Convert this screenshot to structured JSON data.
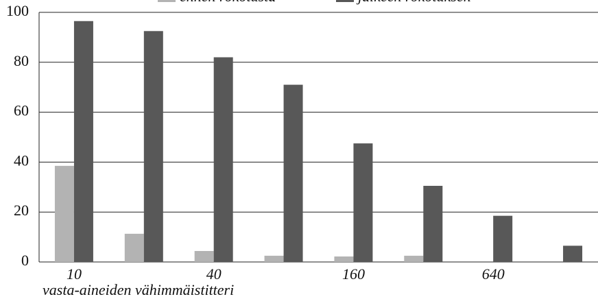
{
  "chart_data": {
    "type": "bar",
    "x_label": "vasta-aineiden vähimmäistitteri",
    "categories": [
      "10",
      null,
      "40",
      null,
      "160",
      null,
      "640",
      null
    ],
    "series": [
      {
        "name": "ennen rokotusta",
        "color": "#b3b3b3",
        "values": [
          38.5,
          11.3,
          4.4,
          2.5,
          2.2,
          2.5,
          0,
          0
        ]
      },
      {
        "name": "jälkeen rokotuksen",
        "color": "#585858",
        "values": [
          96.5,
          92.5,
          82,
          71,
          47.5,
          30.5,
          18.5,
          6.5
        ]
      }
    ],
    "ylim": [
      0,
      100
    ],
    "yticks": [
      0,
      20,
      40,
      60,
      80,
      100
    ],
    "grid": true
  }
}
